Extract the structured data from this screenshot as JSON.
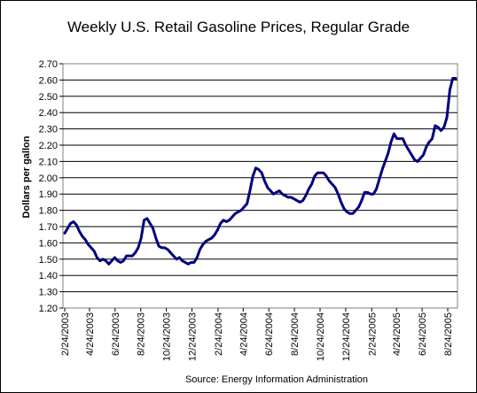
{
  "chart_data": {
    "type": "line",
    "title": "Weekly U.S. Retail Gasoline Prices, Regular Grade",
    "ylabel": "Dollars per gallon",
    "xlabel": "",
    "source": "Source:  Energy Information Administration",
    "ylim": [
      1.2,
      2.7
    ],
    "yticks": [
      "1.20",
      "1.30",
      "1.40",
      "1.50",
      "1.60",
      "1.70",
      "1.80",
      "1.90",
      "2.00",
      "2.10",
      "2.20",
      "2.30",
      "2.40",
      "2.50",
      "2.60",
      "2.70"
    ],
    "xticks": [
      "2/24/2003",
      "4/24/2003",
      "6/24/2003",
      "8/24/2003",
      "10/24/2003",
      "12/24/2003",
      "2/24/2004",
      "4/24/2004",
      "6/24/2004",
      "8/24/2004",
      "10/24/2004",
      "12/24/2004",
      "2/24/2005",
      "4/24/2005",
      "6/24/2005",
      "8/24/2005"
    ],
    "grid": true,
    "line_color": "#000080",
    "series": [
      {
        "name": "",
        "points": [
          [
            "2/24/2003",
            1.66
          ],
          [
            "3/3/2003",
            1.69
          ],
          [
            "3/10/2003",
            1.72
          ],
          [
            "3/17/2003",
            1.73
          ],
          [
            "3/24/2003",
            1.71
          ],
          [
            "3/31/2003",
            1.67
          ],
          [
            "4/7/2003",
            1.64
          ],
          [
            "4/14/2003",
            1.62
          ],
          [
            "4/21/2003",
            1.59
          ],
          [
            "4/28/2003",
            1.57
          ],
          [
            "5/5/2003",
            1.55
          ],
          [
            "5/12/2003",
            1.51
          ],
          [
            "5/19/2003",
            1.49
          ],
          [
            "5/26/2003",
            1.5
          ],
          [
            "6/2/2003",
            1.49
          ],
          [
            "6/9/2003",
            1.47
          ],
          [
            "6/16/2003",
            1.49
          ],
          [
            "6/23/2003",
            1.51
          ],
          [
            "6/30/2003",
            1.49
          ],
          [
            "7/7/2003",
            1.48
          ],
          [
            "7/14/2003",
            1.49
          ],
          [
            "7/21/2003",
            1.52
          ],
          [
            "7/28/2003",
            1.52
          ],
          [
            "8/4/2003",
            1.52
          ],
          [
            "8/11/2003",
            1.54
          ],
          [
            "8/18/2003",
            1.57
          ],
          [
            "8/25/2003",
            1.63
          ],
          [
            "9/1/2003",
            1.74
          ],
          [
            "9/8/2003",
            1.75
          ],
          [
            "9/15/2003",
            1.72
          ],
          [
            "9/22/2003",
            1.69
          ],
          [
            "9/29/2003",
            1.63
          ],
          [
            "10/6/2003",
            1.58
          ],
          [
            "10/13/2003",
            1.57
          ],
          [
            "10/20/2003",
            1.57
          ],
          [
            "10/27/2003",
            1.56
          ],
          [
            "11/3/2003",
            1.54
          ],
          [
            "11/10/2003",
            1.52
          ],
          [
            "11/17/2003",
            1.5
          ],
          [
            "11/24/2003",
            1.51
          ],
          [
            "12/1/2003",
            1.49
          ],
          [
            "12/8/2003",
            1.48
          ],
          [
            "12/15/2003",
            1.47
          ],
          [
            "12/22/2003",
            1.48
          ],
          [
            "12/29/2003",
            1.48
          ],
          [
            "1/5/2004",
            1.51
          ],
          [
            "1/12/2004",
            1.56
          ],
          [
            "1/19/2004",
            1.59
          ],
          [
            "1/26/2004",
            1.61
          ],
          [
            "2/2/2004",
            1.62
          ],
          [
            "2/9/2004",
            1.63
          ],
          [
            "2/16/2004",
            1.65
          ],
          [
            "2/23/2004",
            1.68
          ],
          [
            "3/1/2004",
            1.72
          ],
          [
            "3/8/2004",
            1.74
          ],
          [
            "3/15/2004",
            1.73
          ],
          [
            "3/22/2004",
            1.74
          ],
          [
            "3/29/2004",
            1.76
          ],
          [
            "4/5/2004",
            1.78
          ],
          [
            "4/12/2004",
            1.79
          ],
          [
            "4/19/2004",
            1.8
          ],
          [
            "4/26/2004",
            1.82
          ],
          [
            "5/3/2004",
            1.84
          ],
          [
            "5/10/2004",
            1.92
          ],
          [
            "5/17/2004",
            2.01
          ],
          [
            "5/24/2004",
            2.06
          ],
          [
            "5/31/2004",
            2.05
          ],
          [
            "6/7/2004",
            2.03
          ],
          [
            "6/14/2004",
            1.98
          ],
          [
            "6/21/2004",
            1.94
          ],
          [
            "6/28/2004",
            1.92
          ],
          [
            "7/5/2004",
            1.9
          ],
          [
            "7/12/2004",
            1.91
          ],
          [
            "7/19/2004",
            1.92
          ],
          [
            "7/26/2004",
            1.9
          ],
          [
            "8/2/2004",
            1.89
          ],
          [
            "8/9/2004",
            1.88
          ],
          [
            "8/16/2004",
            1.88
          ],
          [
            "8/23/2004",
            1.87
          ],
          [
            "8/30/2004",
            1.86
          ],
          [
            "9/6/2004",
            1.85
          ],
          [
            "9/13/2004",
            1.86
          ],
          [
            "9/20/2004",
            1.89
          ],
          [
            "9/27/2004",
            1.93
          ],
          [
            "10/4/2004",
            1.96
          ],
          [
            "10/11/2004",
            2.01
          ],
          [
            "10/18/2004",
            2.03
          ],
          [
            "10/25/2004",
            2.03
          ],
          [
            "11/1/2004",
            2.03
          ],
          [
            "11/8/2004",
            2.01
          ],
          [
            "11/15/2004",
            1.98
          ],
          [
            "11/22/2004",
            1.96
          ],
          [
            "11/29/2004",
            1.94
          ],
          [
            "12/6/2004",
            1.9
          ],
          [
            "12/13/2004",
            1.85
          ],
          [
            "12/20/2004",
            1.81
          ],
          [
            "12/27/2004",
            1.79
          ],
          [
            "1/3/2005",
            1.78
          ],
          [
            "1/10/2005",
            1.78
          ],
          [
            "1/17/2005",
            1.8
          ],
          [
            "1/24/2005",
            1.82
          ],
          [
            "1/31/2005",
            1.86
          ],
          [
            "2/7/2005",
            1.91
          ],
          [
            "2/14/2005",
            1.91
          ],
          [
            "2/21/2005",
            1.9
          ],
          [
            "2/28/2005",
            1.9
          ],
          [
            "3/7/2005",
            1.93
          ],
          [
            "3/14/2005",
            1.99
          ],
          [
            "3/21/2005",
            2.05
          ],
          [
            "3/28/2005",
            2.1
          ],
          [
            "4/4/2005",
            2.15
          ],
          [
            "4/11/2005",
            2.22
          ],
          [
            "4/18/2005",
            2.27
          ],
          [
            "4/25/2005",
            2.24
          ],
          [
            "5/2/2005",
            2.24
          ],
          [
            "5/9/2005",
            2.24
          ],
          [
            "5/16/2005",
            2.2
          ],
          [
            "5/23/2005",
            2.17
          ],
          [
            "5/30/2005",
            2.14
          ],
          [
            "6/6/2005",
            2.11
          ],
          [
            "6/13/2005",
            2.1
          ],
          [
            "6/20/2005",
            2.12
          ],
          [
            "6/27/2005",
            2.14
          ],
          [
            "7/4/2005",
            2.19
          ],
          [
            "7/11/2005",
            2.22
          ],
          [
            "7/18/2005",
            2.24
          ],
          [
            "7/25/2005",
            2.32
          ],
          [
            "8/1/2005",
            2.31
          ],
          [
            "8/8/2005",
            2.29
          ],
          [
            "8/15/2005",
            2.31
          ],
          [
            "8/22/2005",
            2.37
          ],
          [
            "8/29/2005",
            2.54
          ],
          [
            "9/5/2005",
            2.61
          ],
          [
            "9/12/2005",
            2.61
          ]
        ]
      }
    ]
  }
}
